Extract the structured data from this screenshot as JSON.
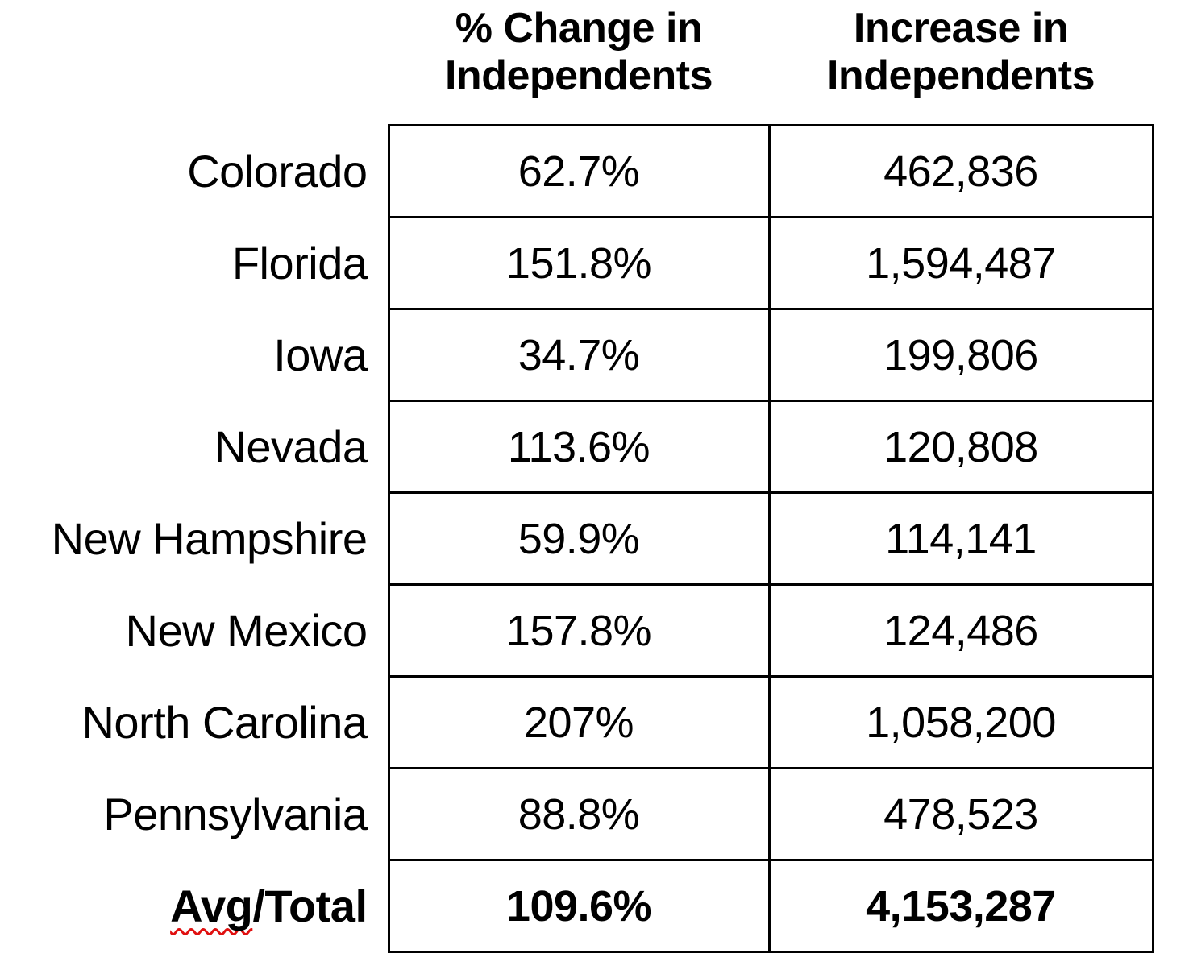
{
  "table": {
    "headers": [
      {
        "id": "pct_change",
        "label": "% Change in\nIndependents"
      },
      {
        "id": "increase",
        "label": "Increase in\nIndependents"
      }
    ],
    "rows": [
      {
        "state": "Colorado",
        "pct_change": "62.7%",
        "increase": "462,836"
      },
      {
        "state": "Florida",
        "pct_change": "151.8%",
        "increase": "1,594,487"
      },
      {
        "state": "Iowa",
        "pct_change": "34.7%",
        "increase": "199,806"
      },
      {
        "state": "Nevada",
        "pct_change": "113.6%",
        "increase": "120,808"
      },
      {
        "state": "New Hampshire",
        "pct_change": "59.9%",
        "increase": "114,141"
      },
      {
        "state": "New Mexico",
        "pct_change": "157.8%",
        "increase": "124,486"
      },
      {
        "state": "North Carolina",
        "pct_change": "207%",
        "increase": "1,058,200"
      },
      {
        "state": "Pennsylvania",
        "pct_change": "88.8%",
        "increase": "478,523"
      }
    ],
    "total_row": {
      "label_misspelled_part": "Avg",
      "label_rest_part": "/Total",
      "pct_change": "109.6%",
      "increase": "4,153,287"
    }
  },
  "colors": {
    "text": "#000000",
    "border": "#000000",
    "background": "#ffffff",
    "spellcheck_underline": "#e01010"
  }
}
